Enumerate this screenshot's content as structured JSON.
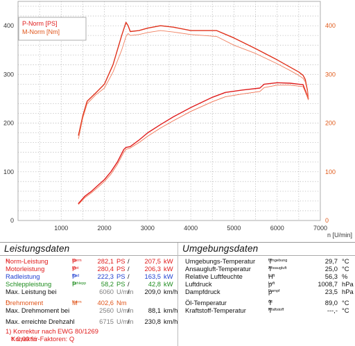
{
  "chart_data": {
    "type": "line",
    "xlabel": "n [U/min]",
    "xlim": [
      0,
      7000
    ],
    "x_ticks": [
      1000,
      2000,
      3000,
      4000,
      5000,
      6000,
      7000
    ],
    "x_tick_labels": [
      "1000",
      "2000",
      "3000",
      "4000",
      "5000",
      "6000",
      "7000"
    ],
    "y_left": {
      "lim": [
        0,
        450
      ],
      "ticks": [
        0,
        100,
        200,
        300,
        400
      ],
      "labels": [
        "0",
        "100",
        "200",
        "300",
        "400"
      ]
    },
    "y_right": {
      "lim": [
        0,
        450
      ],
      "ticks": [
        0,
        100,
        200,
        300,
        400
      ],
      "labels": [
        "0",
        "100",
        "200",
        "300",
        "400"
      ]
    },
    "grid": true,
    "legend_position": "top-left",
    "legend": [
      "P-Norm [PS]",
      "M-Norm [Nm]"
    ],
    "series": [
      {
        "name": "P-Norm [PS]",
        "axis": "left",
        "color": "#e01b1b",
        "x": [
          1400,
          1550,
          1700,
          1850,
          2000,
          2150,
          2300,
          2450,
          2500,
          2600,
          2800,
          3000,
          3300,
          3600,
          4000,
          4500,
          4800,
          5200,
          5600,
          5700,
          6000,
          6300,
          6500,
          6600,
          6680,
          6720
        ],
        "y": [
          35,
          50,
          60,
          72,
          84,
          100,
          120,
          146,
          150,
          152,
          165,
          180,
          197,
          213,
          232,
          253,
          263,
          268,
          272,
          280,
          283,
          282,
          280,
          279,
          260,
          250
        ]
      },
      {
        "name": "",
        "axis": "left",
        "color": "#f07050",
        "x": [
          1400,
          1550,
          1700,
          1850,
          2000,
          2150,
          2300,
          2450,
          2500,
          2600,
          2800,
          3000,
          3300,
          3600,
          4000,
          4500,
          4800,
          5200,
          5600,
          5700,
          6000,
          6300,
          6500,
          6600,
          6680,
          6720
        ],
        "y": [
          33,
          47,
          57,
          68,
          80,
          95,
          115,
          140,
          146,
          149,
          160,
          173,
          190,
          205,
          224,
          244,
          254,
          260,
          265,
          273,
          278,
          278,
          276,
          275,
          258,
          248
        ]
      },
      {
        "name": "M-Norm [Nm]",
        "axis": "right",
        "color": "#e0301a",
        "x": [
          1400,
          1500,
          1600,
          1800,
          2000,
          2200,
          2400,
          2500,
          2550,
          2600,
          2800,
          3000,
          3300,
          3600,
          4000,
          4600,
          5000,
          5500,
          6000,
          6300,
          6500,
          6600,
          6650,
          6700,
          6720
        ],
        "y": [
          175,
          215,
          245,
          262,
          280,
          320,
          380,
          407,
          400,
          388,
          390,
          395,
          400,
          397,
          390,
          390,
          375,
          353,
          330,
          315,
          305,
          298,
          290,
          268,
          250
        ]
      },
      {
        "name": "",
        "axis": "right",
        "color": "#f08060",
        "x": [
          1400,
          1500,
          1600,
          1800,
          2000,
          2200,
          2400,
          2500,
          2550,
          2600,
          2800,
          3000,
          3300,
          3600,
          4000,
          4600,
          5000,
          5500,
          6000,
          6300,
          6500,
          6600,
          6650,
          6700,
          6720
        ],
        "y": [
          168,
          210,
          240,
          258,
          272,
          305,
          350,
          378,
          384,
          380,
          382,
          386,
          390,
          387,
          382,
          378,
          360,
          343,
          322,
          308,
          298,
          292,
          285,
          265,
          248
        ]
      }
    ]
  },
  "leistung": {
    "title": "Leistungsdaten",
    "rows": [
      {
        "label": "Norm-Leistung",
        "footnote": "1)",
        "sym": "P",
        "sub": "Norm",
        "v1": "282,1",
        "u1": "PS",
        "sep": "/",
        "v2": "207,5",
        "u2": "kW"
      },
      {
        "label": "Motorleistung",
        "footnote": "",
        "sym": "P",
        "sub": "Mot",
        "v1": "280,4",
        "u1": "PS",
        "sep": "/",
        "v2": "206,3",
        "u2": "kW"
      },
      {
        "label": "Radleistung",
        "footnote": "",
        "sym": "P",
        "sub": "Rad",
        "v1": "222,3",
        "u1": "PS",
        "sep": "/",
        "v2": "163,5",
        "u2": "kW"
      },
      {
        "label": "Schleppleistung",
        "footnote": "",
        "sym": "P",
        "sub": "Schlepp",
        "v1": "58,2",
        "u1": "PS",
        "sep": "/",
        "v2": "42,8",
        "u2": "kW"
      },
      {
        "label": "Max. Leistung bei",
        "v1": "6060",
        "u1": "U/min",
        "sep": "/",
        "v2": "209,0",
        "u2": "km/h"
      }
    ],
    "torque": {
      "label": "Drehmoment",
      "footnote": "1)",
      "sym": "M",
      "sub": "Norm",
      "v1": "402,6",
      "u1": "Nm"
    },
    "torque_rows": [
      {
        "label": "Max. Drehmoment bei",
        "v1": "2560",
        "u1": "U/min",
        "sep": "/",
        "v2": "88,1",
        "u2": "km/h"
      },
      {
        "label": "Max. erreichte Drehzahl",
        "v1": "6715",
        "u1": "U/min",
        "sep": "/",
        "v2": "230,8",
        "u2": "km/h"
      }
    ],
    "note1": "1) Korrektur nach EWG 80/1269",
    "note2_prefix": "Korrektur-Faktoren: Q",
    "note2_sub": "y",
    "note2_suffix": "= 0,00 %"
  },
  "umgebung": {
    "title": "Umgebungsdaten",
    "rows": [
      {
        "label": "Umgebungs-Temperatur",
        "sym": "T",
        "sub": "Umgebung",
        "value": "29,7",
        "unit": "°C"
      },
      {
        "label": "Ansaugluft-Temperatur",
        "sym": "T",
        "sub": "Ansaugluft",
        "value": "25,0",
        "unit": "°C"
      },
      {
        "label": "Relative Luftfeuchte",
        "sym": "H",
        "sub": "Luft",
        "value": "56,3",
        "unit": "%"
      },
      {
        "label": "Luftdruck",
        "sym": "p",
        "sub": "Luft",
        "value": "1008,7",
        "unit": "hPa"
      },
      {
        "label": "Dampfdruck",
        "sym": "p",
        "sub": "Dampf",
        "value": "23,5",
        "unit": "hPa"
      }
    ],
    "rows2": [
      {
        "label": "Öl-Temperatur",
        "sym": "T",
        "sub": "Öl",
        "value": "89,0",
        "unit": "°C"
      },
      {
        "label": "Kraftstoff-Temperatur",
        "sym": "T",
        "sub": "Kraftstoff",
        "value": "---,-",
        "unit": "°C"
      }
    ]
  }
}
